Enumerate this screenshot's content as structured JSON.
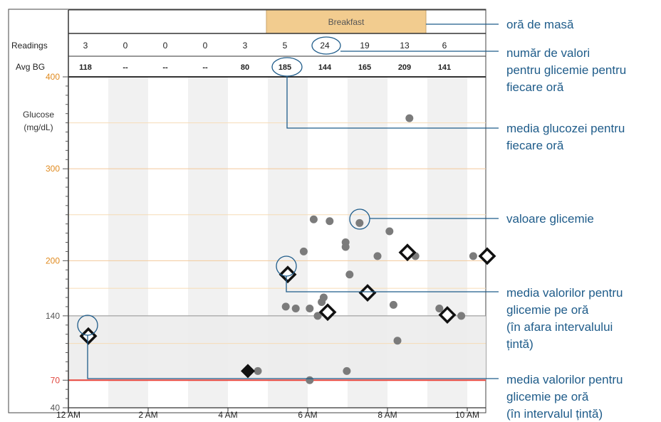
{
  "header": {
    "meal_label": "Breakfast"
  },
  "rows": {
    "readings_label": "Readings",
    "avg_label": "Avg BG",
    "readings": [
      "3",
      "0",
      "0",
      "0",
      "3",
      "5",
      "24",
      "19",
      "13",
      "6"
    ],
    "avg": [
      "118",
      "--",
      "--",
      "--",
      "80",
      "185",
      "144",
      "165",
      "209",
      "141"
    ]
  },
  "axis": {
    "ylabel_line1": "Glucose",
    "ylabel_line2": "(mg/dL)",
    "y_ticks": [
      {
        "v": 40,
        "label": "40",
        "color": "#555555"
      },
      {
        "v": 70,
        "label": "70",
        "color": "#e0443c"
      },
      {
        "v": 140,
        "label": "140",
        "color": "#555555"
      },
      {
        "v": 200,
        "label": "200",
        "color": "#e08a1e"
      },
      {
        "v": 300,
        "label": "300",
        "color": "#e08a1e"
      },
      {
        "v": 400,
        "label": "400",
        "color": "#e08a1e"
      }
    ],
    "x_ticks": [
      {
        "h": 0,
        "label": "12 AM"
      },
      {
        "h": 2,
        "label": "2 AM"
      },
      {
        "h": 4,
        "label": "4 AM"
      },
      {
        "h": 6,
        "label": "6 AM"
      },
      {
        "h": 8,
        "label": "8 AM"
      },
      {
        "h": 10,
        "label": "10 AM"
      }
    ]
  },
  "chart_data": {
    "type": "scatter",
    "ylabel": "Glucose (mg/dL)",
    "ylim": [
      40,
      400
    ],
    "x_unit": "hour of day",
    "xlim": [
      0,
      11.2
    ],
    "target_range": [
      70,
      140
    ],
    "meal_window": {
      "label": "Breakfast",
      "start_hour": 5,
      "end_hour": 9
    },
    "readings": [
      {
        "x": 4.75,
        "y": 80
      },
      {
        "x": 5.45,
        "y": 150
      },
      {
        "x": 5.7,
        "y": 148
      },
      {
        "x": 5.9,
        "y": 210
      },
      {
        "x": 6.05,
        "y": 148
      },
      {
        "x": 6.05,
        "y": 70
      },
      {
        "x": 6.15,
        "y": 245
      },
      {
        "x": 6.25,
        "y": 140
      },
      {
        "x": 6.35,
        "y": 155
      },
      {
        "x": 6.4,
        "y": 160
      },
      {
        "x": 6.55,
        "y": 243
      },
      {
        "x": 6.95,
        "y": 220
      },
      {
        "x": 6.95,
        "y": 215
      },
      {
        "x": 6.98,
        "y": 80
      },
      {
        "x": 7.05,
        "y": 185
      },
      {
        "x": 7.3,
        "y": 241
      },
      {
        "x": 7.75,
        "y": 205
      },
      {
        "x": 8.05,
        "y": 232
      },
      {
        "x": 8.15,
        "y": 152
      },
      {
        "x": 8.25,
        "y": 113
      },
      {
        "x": 8.55,
        "y": 355
      },
      {
        "x": 8.7,
        "y": 205
      },
      {
        "x": 9.3,
        "y": 148
      },
      {
        "x": 9.85,
        "y": 140
      },
      {
        "x": 10.15,
        "y": 205
      }
    ],
    "hourly_avg": [
      {
        "x": 0.5,
        "y": 118,
        "in_range": false
      },
      {
        "x": 4.5,
        "y": 80,
        "in_range": true
      },
      {
        "x": 5.5,
        "y": 185,
        "in_range": false
      },
      {
        "x": 6.5,
        "y": 144,
        "in_range": false
      },
      {
        "x": 7.5,
        "y": 165,
        "in_range": false
      },
      {
        "x": 8.5,
        "y": 209,
        "in_range": false
      },
      {
        "x": 9.5,
        "y": 141,
        "in_range": false
      },
      {
        "x": 10.5,
        "y": 205,
        "in_range": false
      }
    ]
  },
  "annotations": {
    "meal_time": "oră de masă",
    "count_line1": "număr de valori",
    "count_line2": "pentru glicemie pentru",
    "count_line3": "fiecare oră",
    "avg_line1": "media glucozei pentru",
    "avg_line2": "fiecare oră",
    "reading": "valoare glicemie",
    "avg_out_line1": "media valorilor pentru",
    "avg_out_line2": "glicemie pe oră",
    "avg_out_line3": "(în afara intervalului",
    "avg_out_line4": "țintă)",
    "avg_in_line1": "media valorilor pentru",
    "avg_in_line2": "glicemie pe oră",
    "avg_in_line3": "(în intervalul țintă)"
  },
  "colors": {
    "meal": "#f2cc8f",
    "low_line": "#e8453c",
    "target_band": "#eeeeee",
    "stripe": "#ececec",
    "reading_dot": "#7b7b7b",
    "annotation": "#1f5c8a"
  }
}
